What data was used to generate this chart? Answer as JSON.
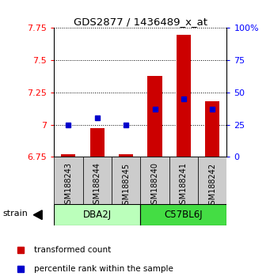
{
  "title": "GDS2877 / 1436489_x_at",
  "samples": [
    "GSM188243",
    "GSM188244",
    "GSM188245",
    "GSM188240",
    "GSM188241",
    "GSM188242"
  ],
  "transformed_counts": [
    6.77,
    6.97,
    6.77,
    7.38,
    7.7,
    7.18
  ],
  "percentile_ranks": [
    25,
    30,
    25,
    37,
    45,
    37
  ],
  "ylim_left": [
    6.75,
    7.75
  ],
  "ylim_right": [
    0,
    100
  ],
  "yticks_left": [
    6.75,
    7.0,
    7.25,
    7.5,
    7.75
  ],
  "ytick_labels_left": [
    "6.75",
    "7",
    "7.25",
    "7.5",
    "7.75"
  ],
  "yticks_right": [
    0,
    25,
    50,
    75,
    100
  ],
  "ytick_labels_right": [
    "0",
    "25",
    "50",
    "75",
    "100%"
  ],
  "bar_color": "#cc0000",
  "dot_color": "#0000cc",
  "bar_width": 0.5,
  "strain_label": "strain",
  "legend_red": "transformed count",
  "legend_blue": "percentile rank within the sample",
  "dba_color": "#bbffbb",
  "c57_color": "#44dd44",
  "sample_bg": "#cccccc"
}
